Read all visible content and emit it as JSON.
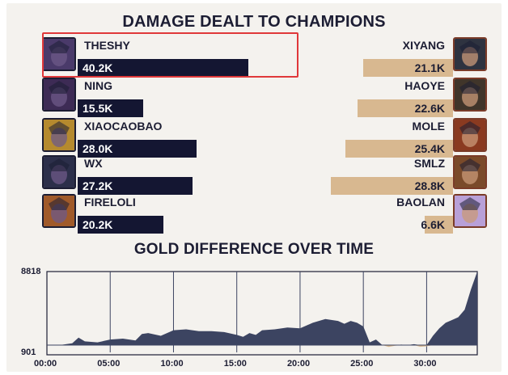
{
  "damage": {
    "title": "DAMAGE DEALT TO CHAMPIONS",
    "max_value_k": 42,
    "left_team": [
      {
        "name": "THESHY",
        "value_label": "40.2K",
        "value_k": 40.2,
        "highlighted": true
      },
      {
        "name": "NING",
        "value_label": "15.5K",
        "value_k": 15.5
      },
      {
        "name": "XIAOCAOBAO",
        "value_label": "28.0K",
        "value_k": 28.0
      },
      {
        "name": "WX",
        "value_label": "27.2K",
        "value_k": 27.2
      },
      {
        "name": "FIRELOLI",
        "value_label": "20.2K",
        "value_k": 20.2
      }
    ],
    "right_team": [
      {
        "name": "XIYANG",
        "value_label": "21.1K",
        "value_k": 21.1
      },
      {
        "name": "HAOYE",
        "value_label": "22.6K",
        "value_k": 22.6
      },
      {
        "name": "MOLE",
        "value_label": "25.4K",
        "value_k": 25.4
      },
      {
        "name": "SMLZ",
        "value_label": "28.8K",
        "value_k": 28.8
      },
      {
        "name": "BAOLAN",
        "value_label": "6.6K",
        "value_k": 6.6
      }
    ]
  },
  "gold": {
    "title": "GOLD DIFFERENCE OVER TIME",
    "y_top_label": "8818",
    "y_bottom_label": "901",
    "x_tick_labels": [
      "00:00",
      "05:00",
      "10:00",
      "15:00",
      "20:00",
      "25:00",
      "30:00"
    ]
  },
  "chart_data": [
    {
      "type": "bar",
      "title": "DAMAGE DEALT TO CHAMPIONS",
      "series": [
        {
          "categories": [
            "THESHY",
            "NING",
            "XIAOCAOBAO",
            "WX",
            "FIRELOLI"
          ],
          "values": [
            40.2,
            15.5,
            28.0,
            27.2,
            20.2
          ]
        },
        {
          "categories": [
            "XIYANG",
            "HAOYE",
            "MOLE",
            "SMLZ",
            "BAOLAN"
          ],
          "values": [
            21.1,
            22.6,
            25.4,
            28.8,
            6.6
          ]
        }
      ],
      "unit": "K"
    },
    {
      "type": "area",
      "title": "GOLD DIFFERENCE OVER TIME",
      "ylim": [
        901,
        8818
      ],
      "x_minutes": [
        0,
        1,
        2,
        2.5,
        3,
        4,
        5,
        6,
        7,
        7.5,
        8,
        9,
        10,
        11,
        12,
        13,
        14,
        15,
        15.5,
        16,
        16.5,
        17,
        18,
        19,
        20,
        21,
        22,
        23,
        23.5,
        24,
        24.5,
        25,
        25.5,
        26,
        26.5,
        27,
        27.5,
        28,
        28.5,
        29,
        29.5,
        30,
        30.5,
        31,
        31.5,
        32,
        32.5,
        33,
        33.5,
        34
      ],
      "y": [
        901,
        901,
        1100,
        1700,
        1300,
        1200,
        1500,
        1600,
        1400,
        2100,
        2200,
        1900,
        2500,
        2600,
        2400,
        2400,
        2300,
        2000,
        1800,
        2200,
        2000,
        2500,
        2600,
        2800,
        2700,
        3300,
        3700,
        3500,
        3200,
        3500,
        3300,
        2900,
        1200,
        1500,
        900,
        750,
        850,
        950,
        901,
        1000,
        760,
        800,
        1900,
        2700,
        3300,
        3600,
        3900,
        4700,
        6900,
        8818
      ]
    }
  ]
}
